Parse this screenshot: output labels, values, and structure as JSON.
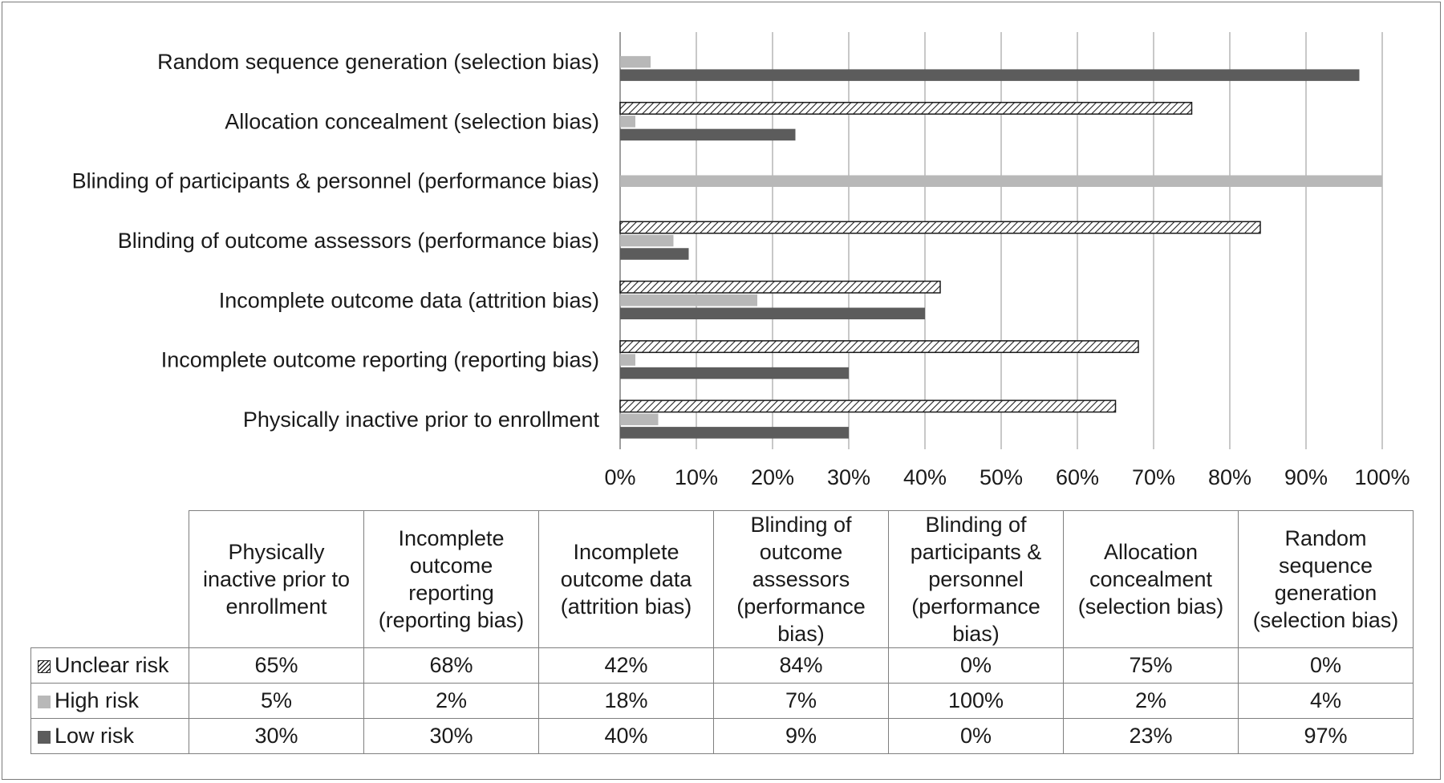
{
  "colors": {
    "unclear_fill": "#ffffff",
    "unclear_hatch": "#222222",
    "high": "#b8b8b8",
    "low": "#5c5c5c",
    "grid": "#b5b5b5"
  },
  "chart_data": {
    "type": "bar",
    "orientation": "horizontal",
    "title": "",
    "xlabel": "",
    "ylabel": "",
    "xlim": [
      0,
      100
    ],
    "x_unit": "%",
    "grid": true,
    "legend_placement": "table-rows",
    "x_ticks": [
      "0%",
      "10%",
      "20%",
      "30%",
      "40%",
      "50%",
      "60%",
      "70%",
      "80%",
      "90%",
      "100%"
    ],
    "categories": [
      "Random sequence generation (selection bias)",
      "Allocation concealment (selection bias)",
      "Blinding of participants & personnel (performance bias)",
      "Blinding of outcome assessors (performance bias)",
      "Incomplete outcome data (attrition bias)",
      "Incomplete outcome reporting (reporting bias)",
      "Physically inactive prior to enrollment"
    ],
    "series": [
      {
        "name": "Unclear risk",
        "values": [
          0,
          75,
          0,
          84,
          42,
          68,
          65
        ]
      },
      {
        "name": "High risk",
        "values": [
          4,
          2,
          100,
          7,
          18,
          2,
          5
        ]
      },
      {
        "name": "Low risk",
        "values": [
          97,
          23,
          0,
          9,
          40,
          30,
          30
        ]
      }
    ]
  },
  "table": {
    "columns": [
      "Physically inactive prior to enrollment",
      "Incomplete outcome reporting (reporting bias)",
      "Incomplete outcome data (attrition bias)",
      "Blinding of outcome assessors (performance bias)",
      "Blinding of participants & personnel (performance bias)",
      "Allocation concealment (selection bias)",
      "Random sequence generation (selection bias)"
    ],
    "rows": [
      {
        "label": "Unclear risk",
        "cells": [
          "65%",
          "68%",
          "42%",
          "84%",
          "0%",
          "75%",
          "0%"
        ]
      },
      {
        "label": "High risk",
        "cells": [
          "5%",
          "2%",
          "18%",
          "7%",
          "100%",
          "2%",
          "4%"
        ]
      },
      {
        "label": "Low risk",
        "cells": [
          "30%",
          "30%",
          "40%",
          "9%",
          "0%",
          "23%",
          "97%"
        ]
      }
    ]
  }
}
